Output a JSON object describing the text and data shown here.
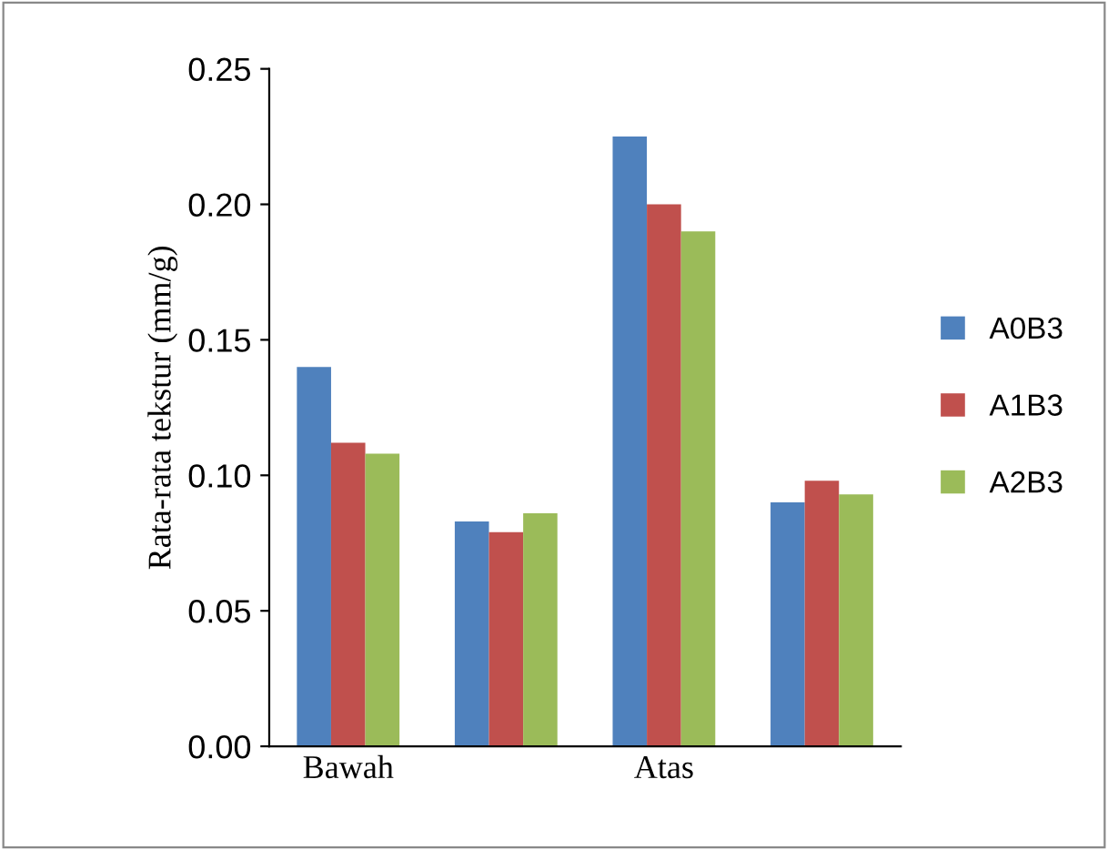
{
  "chart_data": {
    "type": "bar",
    "ylabel": "Rata-rata tekstur (mm/g)",
    "categories": [
      "Bawah",
      null,
      "Atas",
      null
    ],
    "series": [
      {
        "name": "A0B3",
        "color": "#4f81bd",
        "values": [
          0.14,
          0.083,
          0.225,
          0.09
        ]
      },
      {
        "name": "A1B3",
        "color": "#c0504d",
        "values": [
          0.112,
          0.079,
          0.2,
          0.098
        ]
      },
      {
        "name": "A2B3",
        "color": "#9bbb59",
        "values": [
          0.108,
          0.086,
          0.19,
          0.093
        ]
      }
    ],
    "ylim": [
      0,
      0.25
    ],
    "yticks": [
      {
        "value": 0,
        "label": "0.00"
      },
      {
        "value": 0.05,
        "label": "0.05"
      },
      {
        "value": 0.1,
        "label": "0.10"
      },
      {
        "value": 0.15,
        "label": "0.15"
      },
      {
        "value": 0.2,
        "label": "0.20"
      },
      {
        "value": 0.25,
        "label": "0.25"
      }
    ],
    "legend": "right",
    "grid": false
  }
}
